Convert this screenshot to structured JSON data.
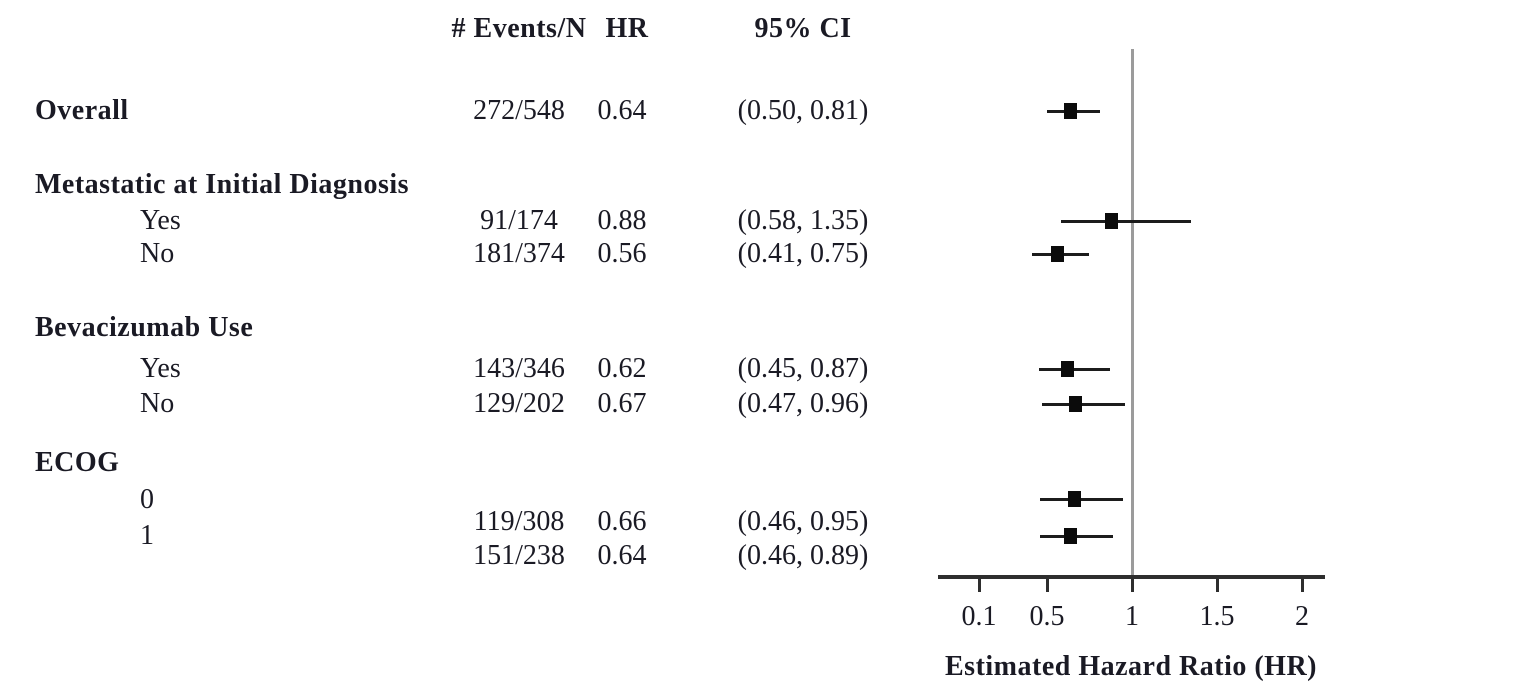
{
  "table": {
    "header": {
      "events": "# Events/N",
      "hr": "HR",
      "ci": "95% CI"
    },
    "rows": [
      {
        "label": "Overall",
        "events": "272/548",
        "hr": "0.64",
        "ci": "(0.50, 0.81)"
      },
      {
        "label": "Metastatic at Initial Diagnosis"
      },
      {
        "label": "Yes",
        "events": "91/174",
        "hr": "0.88",
        "ci": "(0.58, 1.35)"
      },
      {
        "label": "No",
        "events": "181/374",
        "hr": "0.56",
        "ci": "(0.41, 0.75)"
      },
      {
        "label": "Bevacizumab Use"
      },
      {
        "label": "Yes",
        "events": "143/346",
        "hr": "0.62",
        "ci": "(0.45, 0.87)"
      },
      {
        "label": "No",
        "events": "129/202",
        "hr": "0.67",
        "ci": "(0.47, 0.96)"
      },
      {
        "label": "ECOG"
      },
      {
        "label": "0",
        "events": "119/308",
        "hr": "0.66",
        "ci": "(0.46, 0.95)"
      },
      {
        "label": "1",
        "events": "151/238",
        "hr": "0.64",
        "ci": "(0.46, 0.89)"
      }
    ]
  },
  "chart_data": {
    "type": "scatter",
    "subtype": "forest-plot",
    "xlabel": "Estimated Hazard Ratio (HR)",
    "x_ticks": [
      0.1,
      0.5,
      1,
      1.5,
      2
    ],
    "xlim": [
      -0.14,
      2.14
    ],
    "ref_line_x": 1.0,
    "legend": "none",
    "grid": false,
    "points": [
      {
        "label": "Overall",
        "hr": 0.64,
        "ci_low": 0.5,
        "ci_high": 0.81
      },
      {
        "label": "Metastatic at Initial Diagnosis: Yes",
        "hr": 0.88,
        "ci_low": 0.58,
        "ci_high": 1.35
      },
      {
        "label": "Metastatic at Initial Diagnosis: No",
        "hr": 0.56,
        "ci_low": 0.41,
        "ci_high": 0.75
      },
      {
        "label": "Bevacizumab Use: Yes",
        "hr": 0.62,
        "ci_low": 0.45,
        "ci_high": 0.87
      },
      {
        "label": "Bevacizumab Use: No",
        "hr": 0.67,
        "ci_low": 0.47,
        "ci_high": 0.96
      },
      {
        "label": "ECOG: 0",
        "hr": 0.66,
        "ci_low": 0.46,
        "ci_high": 0.95
      },
      {
        "label": "ECOG: 1",
        "hr": 0.64,
        "ci_low": 0.46,
        "ci_high": 0.89
      }
    ]
  },
  "colors": {
    "background": "#ffffff",
    "text": "#1a1a24",
    "axis": "#2e2e2e",
    "marker": "#0b0b0b",
    "ci_line": "#1c1c1c",
    "ref_line": "#9b9b9b"
  }
}
